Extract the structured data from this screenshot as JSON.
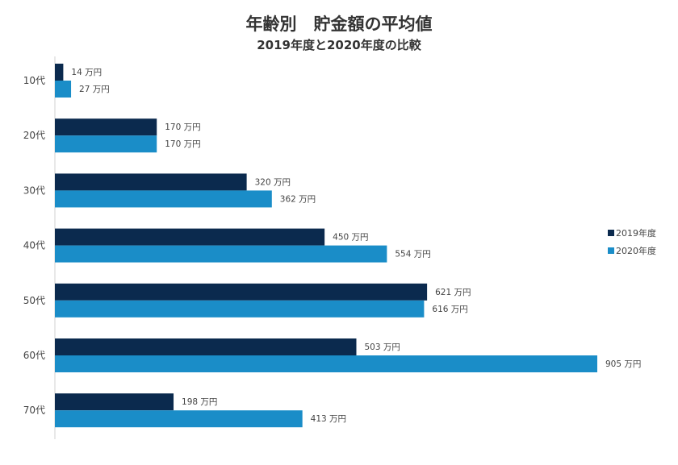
{
  "chart_data": {
    "type": "bar",
    "orientation": "horizontal",
    "title": "年齢別　貯金額の平均値",
    "subtitle": "2019年度と2020年度の比較",
    "categories": [
      "10代",
      "20代",
      "30代",
      "40代",
      "50代",
      "60代",
      "70代"
    ],
    "unit": "万円",
    "series": [
      {
        "name": "2019年度",
        "color": "#0b2a4e",
        "values": [
          14,
          170,
          320,
          450,
          621,
          503,
          198
        ]
      },
      {
        "name": "2020年度",
        "color": "#1a8dc8",
        "values": [
          27,
          170,
          362,
          554,
          616,
          905,
          413
        ]
      }
    ],
    "xlim": [
      0,
      905
    ],
    "grid": false,
    "legend": "right"
  }
}
